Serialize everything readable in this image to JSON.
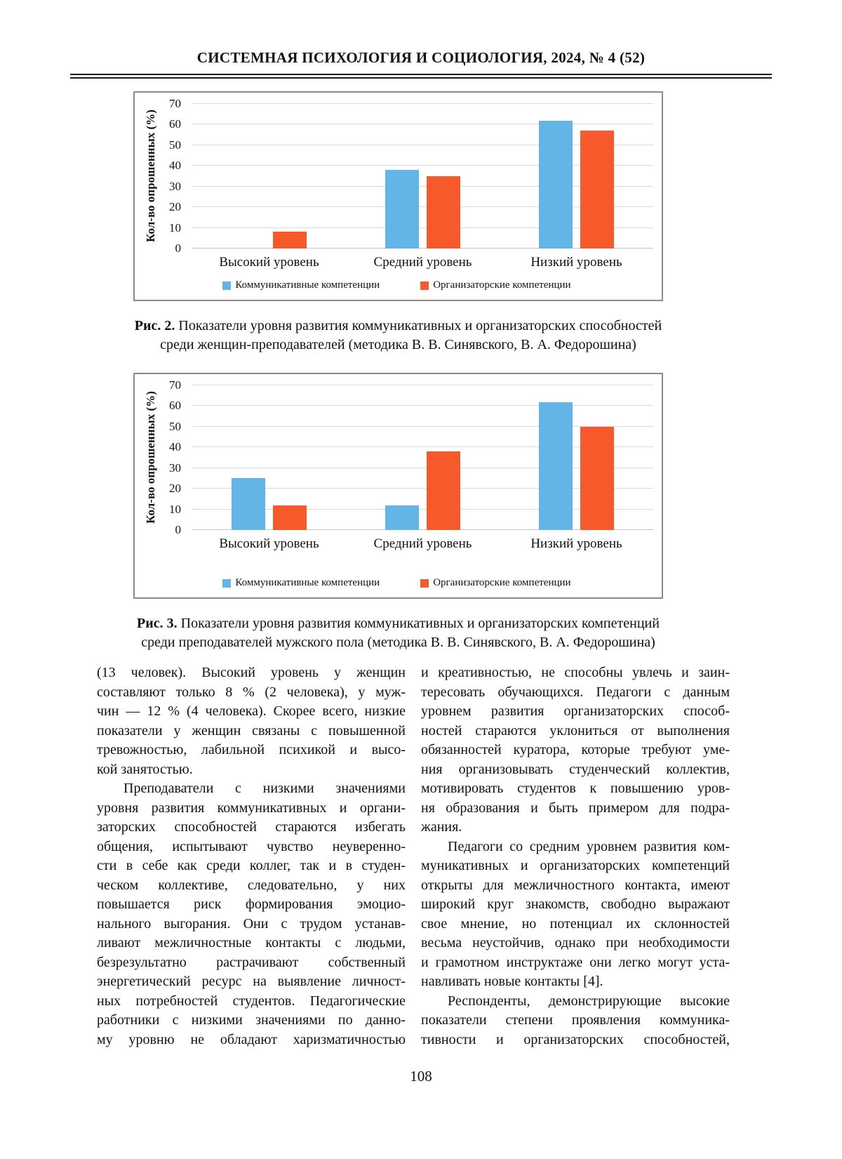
{
  "page": {
    "header": "СИСТЕМНАЯ ПСИХОЛОГИЯ И СОЦИОЛОГИЯ, 2024, № 4 (52)",
    "page_number": "108"
  },
  "chart_data": [
    {
      "type": "bar",
      "figure": "Рис. 2",
      "title": "",
      "ylabel": "Кол-во опрошенных  (%)",
      "xlabel": "",
      "ylim": [
        0,
        70
      ],
      "yticks": [
        0,
        10,
        20,
        30,
        40,
        50,
        60,
        70
      ],
      "grid": true,
      "legend_position": "bottom",
      "categories": [
        "Высокий уровень",
        "Средний уровень",
        "Низкий уровень"
      ],
      "series": [
        {
          "name": "Коммуникативные компетенции",
          "color": "#63B5E7",
          "values": [
            0,
            38,
            62
          ]
        },
        {
          "name": "Организаторские компетенции",
          "color": "#F65A2B",
          "values": [
            8,
            35,
            57
          ]
        }
      ],
      "caption_bold": "Рис. 2.",
      "caption_lines": [
        "Показатели уровня развития коммуникативных и организаторских способностей",
        "среди женщин-преподавателей (методика В. В. Синявского, В. А. Федорошина)"
      ]
    },
    {
      "type": "bar",
      "figure": "Рис. 3",
      "title": "",
      "ylabel": "Кол-во опрошенных (%)",
      "xlabel": "",
      "ylim": [
        0,
        70
      ],
      "yticks": [
        0,
        10,
        20,
        30,
        40,
        50,
        60,
        70
      ],
      "grid": true,
      "legend_position": "bottom",
      "categories": [
        "Высокий уровень",
        "Средний уровень",
        "Низкий уровень"
      ],
      "series": [
        {
          "name": "Коммуникативные компетенции",
          "color": "#63B5E7",
          "values": [
            25,
            12,
            62
          ]
        },
        {
          "name": "Организаторские компетенции",
          "color": "#F65A2B",
          "values": [
            12,
            38,
            50
          ]
        }
      ],
      "caption_bold": "Рис. 3.",
      "caption_lines": [
        "Показатели уровня развития коммуникативных и организаторских компетенций",
        "среди преподавателей мужского пола (методика В. В. Синявского, В. А. Федорошина)"
      ]
    }
  ],
  "body": {
    "left_column_lines": [
      {
        "t": "(13 человек). Высокий уровень у женщин"
      },
      {
        "t": "составляют только 8 % (2 человека), у муж-"
      },
      {
        "t": "чин — 12 % (4 человека). Скорее всего, низкие"
      },
      {
        "t": "показатели у женщин связаны с повышенной"
      },
      {
        "t": "тревожностью, лабильной психикой и высо-"
      },
      {
        "t": "кой занятостью.",
        "end": true
      },
      {
        "t": "Преподаватели с низкими значениями",
        "indent": true
      },
      {
        "t": "уровня развития коммуникативных и органи-"
      },
      {
        "t": "заторских способностей стараются избегать"
      },
      {
        "t": "общения, испытывают чувство неуверенно-"
      },
      {
        "t": "сти в себе как среди коллег, так и в студен-"
      },
      {
        "t": "ческом коллективе, следовательно, у них"
      },
      {
        "t": "повышается риск формирования эмоцио-"
      },
      {
        "t": "нального выгорания. Они с трудом устанав-"
      },
      {
        "t": "ливают межличностные контакты с людьми,"
      },
      {
        "t": "безрезультатно растрачивают собственный"
      },
      {
        "t": "энергетический ресурс на выявление личност-"
      },
      {
        "t": "ных потребностей студентов. Педагогические"
      },
      {
        "t": "работники с низкими значениями по данно-"
      },
      {
        "t": "му уровню не обладают харизматичностью"
      }
    ],
    "right_column_lines": [
      {
        "t": "и креативностью, не способны увлечь и заин-"
      },
      {
        "t": "тересовать обучающихся. Педагоги с данным"
      },
      {
        "t": "уровнем развития организаторских способ-"
      },
      {
        "t": "ностей стараются уклониться от выполнения"
      },
      {
        "t": "обязанностей куратора, которые требуют уме-"
      },
      {
        "t": "ния организовывать студенческий коллектив,"
      },
      {
        "t": "мотивировать студентов к повышению уров-"
      },
      {
        "t": "ня образования и быть примером для подра-"
      },
      {
        "t": "жания.",
        "end": true
      },
      {
        "t": "Педагоги со средним уровнем развития ком-",
        "indent": true
      },
      {
        "t": "муникативных и организаторских компетенций"
      },
      {
        "t": "открыты для межличностного контакта, имеют"
      },
      {
        "t": "широкий круг знакомств, свободно выражают"
      },
      {
        "t": "свое мнение, но потенциал их склонностей"
      },
      {
        "t": "весьма неустойчив, однако при необходимости"
      },
      {
        "t": "и грамотном инструктаже они легко могут уста-"
      },
      {
        "t": "навливать новые контакты [4].",
        "end": true
      },
      {
        "t": "Респонденты, демонстрирующие высокие",
        "indent": true
      },
      {
        "t": "показатели степени проявления коммуника-"
      },
      {
        "t": "тивности и организаторских способностей,"
      }
    ]
  }
}
